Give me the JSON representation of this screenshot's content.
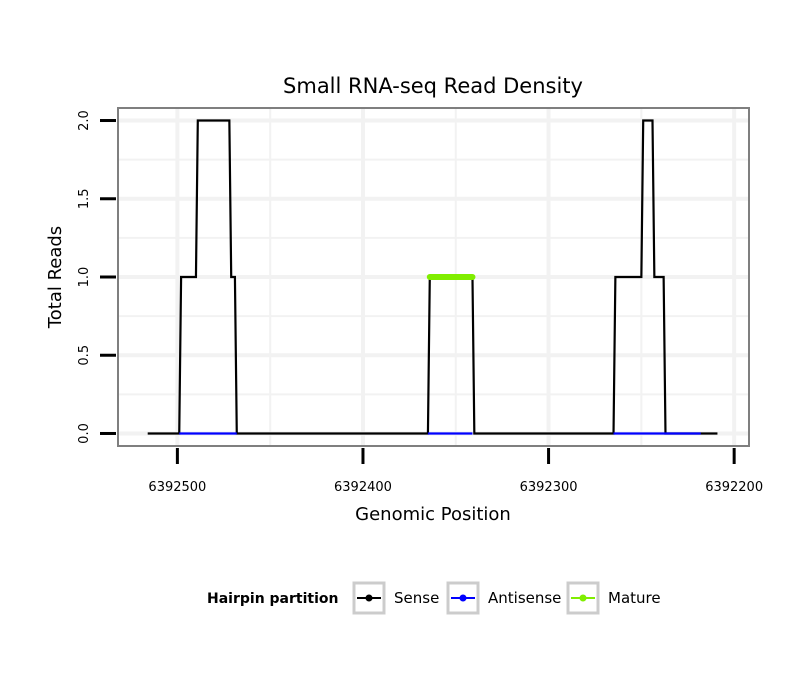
{
  "chart_data": {
    "type": "line",
    "title": "Small RNA-seq Read Density",
    "xlabel": "Genomic Position",
    "ylabel": "Total Reads",
    "x_reversed": true,
    "xlim": [
      6392532,
      6392192
    ],
    "ylim": [
      -0.08,
      2.08
    ],
    "x_ticks": [
      6392500,
      6392400,
      6392300,
      6392200
    ],
    "x_tick_labels": [
      "6392500",
      "6392400",
      "6392300",
      "6392200"
    ],
    "y_ticks": [
      0,
      0.5,
      1,
      1.5,
      2
    ],
    "y_tick_labels": [
      "0.0",
      "0.5",
      "1.0",
      "1.5",
      "2.0"
    ],
    "grid": true,
    "legend_position": "bottom",
    "legend_title": "Hairpin partition",
    "colors": {
      "sense": "#000000",
      "antisense": "#0000ff",
      "mature": "#80ee00",
      "panel_border": "#7f7f7f",
      "grid": "#f2f2f2",
      "legend_key_border": "#cccccc"
    },
    "series": [
      {
        "name": "Sense",
        "color": "#000000",
        "x": [
          6392516,
          6392499,
          6392498,
          6392490,
          6392489,
          6392472,
          6392471,
          6392469,
          6392468,
          6392365,
          6392364,
          6392341,
          6392340,
          6392265,
          6392264,
          6392250,
          6392249,
          6392244,
          6392243,
          6392238,
          6392237,
          6392219,
          6392218,
          6392209
        ],
        "y": [
          0,
          0,
          1,
          1,
          2,
          2,
          1,
          1,
          0,
          0,
          1,
          1,
          0,
          0,
          1,
          1,
          2,
          2,
          1,
          1,
          0,
          0,
          0,
          0
        ]
      },
      {
        "name": "Antisense",
        "color": "#0000ff",
        "x": [
          6392499,
          6392468,
          6392365,
          6392341,
          6392265,
          6392218
        ],
        "y": [
          0,
          0,
          0,
          0,
          0,
          0
        ],
        "segments": [
          [
            6392499,
            6392468
          ],
          [
            6392365,
            6392341
          ],
          [
            6392265,
            6392218
          ]
        ]
      },
      {
        "name": "Mature",
        "color": "#80ee00",
        "x": [
          6392364,
          6392341
        ],
        "y": [
          1,
          1
        ]
      }
    ]
  }
}
